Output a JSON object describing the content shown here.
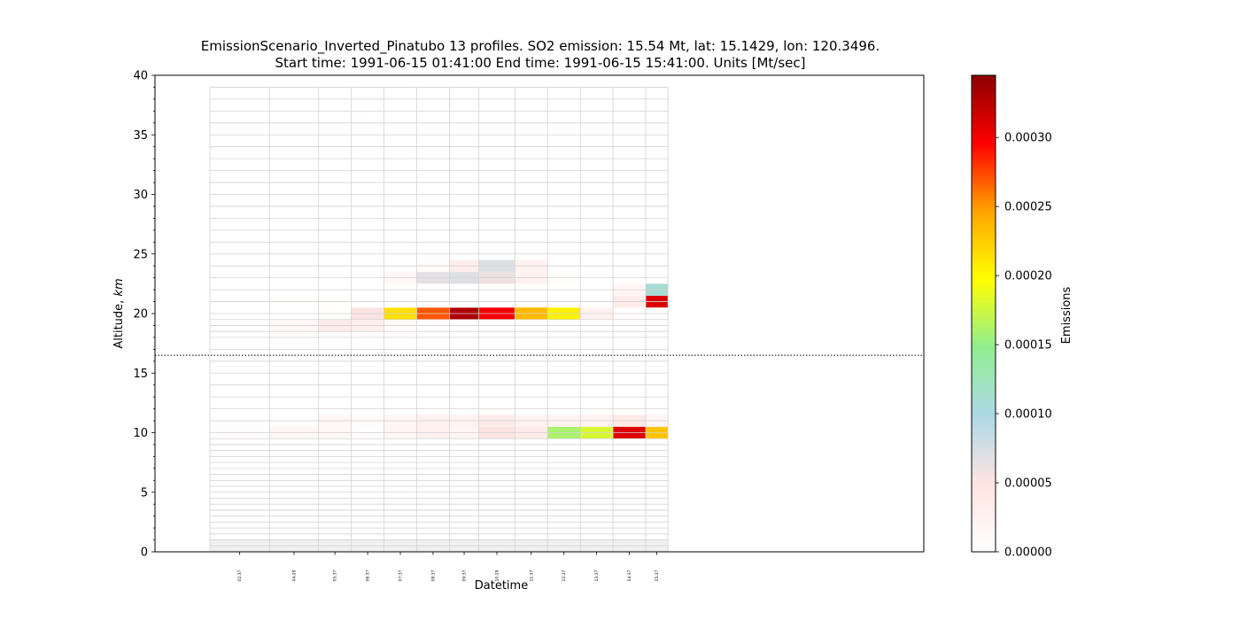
{
  "chart_data": {
    "type": "heatmap",
    "title_line1": "EmissionScenario_Inverted_Pinatubo 13 profiles. SO2  emission: 15.54 Mt, lat: 15.1429, lon: 120.3496.",
    "title_line2": "Start time: 1991-06-15 01:41:00 End time: 1991-06-15 15:41:00. Units [Mt/sec]",
    "xlabel": "Datetime",
    "ylabel_text": "Altitude, ",
    "ylabel_unit": "km",
    "ylim": [
      0,
      40
    ],
    "yticks": [
      0,
      5,
      10,
      15,
      20,
      25,
      30,
      35,
      40
    ],
    "tropopause_altitude_km": 16.5,
    "colorbar": {
      "label": "Emissions",
      "range": [
        0,
        0.000345
      ],
      "ticks": [
        0,
        5e-05,
        0.0001,
        0.00015,
        0.0002,
        0.00025,
        0.0003
      ],
      "tick_labels": [
        "0.00000",
        "0.00005",
        "0.00010",
        "0.00015",
        "0.00020",
        "0.00025",
        "0.00030"
      ],
      "colors": [
        "#ffffff",
        "#ffe4e1",
        "#add8e6",
        "#90ee90",
        "#ffff00",
        "#ffa500",
        "#ff0000",
        "#8b0000"
      ]
    },
    "time_labels": [
      "02:37",
      "04:29",
      "05:37",
      "06:37",
      "07:37",
      "08:37",
      "09:37",
      "10:29",
      "11:37",
      "12:37",
      "13:37",
      "14:37",
      "15:37"
    ],
    "time_edges_hours": [
      1.68,
      3.5,
      5.0,
      6.0,
      7.0,
      8.0,
      9.0,
      9.9,
      11.0,
      12.0,
      13.0,
      14.0,
      15.0,
      15.68
    ],
    "xlim_hours": [
      0.0,
      23.5
    ],
    "altitude_levels_km": [
      0,
      0.5,
      1,
      1.5,
      2,
      2.5,
      3,
      3.5,
      4,
      4.5,
      5,
      5.5,
      6,
      6.5,
      7,
      7.5,
      8,
      8.5,
      9,
      9.5,
      10,
      11,
      12,
      13,
      14,
      15,
      16,
      17,
      18,
      18.5,
      19,
      19.5,
      20,
      21,
      22,
      23,
      24,
      25,
      26,
      27,
      28,
      29,
      30,
      31,
      32,
      33,
      34,
      35,
      36,
      37,
      38,
      39
    ],
    "cells": [
      {
        "t": 0,
        "bottom": 9.5,
        "top": 10.5,
        "v": 3e-06
      },
      {
        "t": 0,
        "bottom": 18.5,
        "top": 19.5,
        "v": 1.5e-06
      },
      {
        "t": 1,
        "bottom": 9.5,
        "top": 10.5,
        "v": 1.4e-05
      },
      {
        "t": 1,
        "bottom": 10.5,
        "top": 11.5,
        "v": 3e-06
      },
      {
        "t": 1,
        "bottom": 18.5,
        "top": 19.5,
        "v": 1.3e-05
      },
      {
        "t": 1,
        "bottom": 17.5,
        "top": 18.5,
        "v": 1e-06
      },
      {
        "t": 1,
        "bottom": 20.5,
        "top": 21.5,
        "v": 2.5e-06
      },
      {
        "t": 2,
        "bottom": 9.5,
        "top": 10.5,
        "v": 1.4e-05
      },
      {
        "t": 2,
        "bottom": 10.5,
        "top": 11.5,
        "v": 1.4e-05
      },
      {
        "t": 2,
        "bottom": 18.5,
        "top": 19.5,
        "v": 3.4e-05
      },
      {
        "t": 2,
        "bottom": 19.5,
        "top": 20.5,
        "v": 2.5e-06
      },
      {
        "t": 2,
        "bottom": 20.5,
        "top": 21.5,
        "v": 2.5e-06
      },
      {
        "t": 3,
        "bottom": 9.5,
        "top": 10.5,
        "v": 4e-06
      },
      {
        "t": 3,
        "bottom": 10.5,
        "top": 11.5,
        "v": 7e-06
      },
      {
        "t": 3,
        "bottom": 18.5,
        "top": 19.5,
        "v": 2.8e-05
      },
      {
        "t": 3,
        "bottom": 19.5,
        "top": 20.5,
        "v": 5.2e-05
      },
      {
        "t": 3,
        "bottom": 20.5,
        "top": 21.5,
        "v": 1.5e-06
      },
      {
        "t": 3,
        "bottom": 35.5,
        "top": 38.5,
        "v": 3.5e-06
      },
      {
        "t": 3,
        "bottom": 34.5,
        "top": 35.5,
        "v": 1e-06
      },
      {
        "t": 4,
        "bottom": 9.5,
        "top": 10.5,
        "v": 1.6e-05
      },
      {
        "t": 4,
        "bottom": 10.5,
        "top": 11.5,
        "v": 1.6e-05
      },
      {
        "t": 4,
        "bottom": 18.5,
        "top": 19.5,
        "v": 6e-06
      },
      {
        "t": 4,
        "bottom": 19.5,
        "top": 20.5,
        "v": 0.000215
      },
      {
        "t": 4,
        "bottom": 20.5,
        "top": 22.5,
        "v": 1.5e-06
      },
      {
        "t": 4,
        "bottom": 22.5,
        "top": 23.5,
        "v": 1.7e-05
      },
      {
        "t": 4,
        "bottom": 34.5,
        "top": 35.5,
        "v": 1e-06
      },
      {
        "t": 5,
        "bottom": 9.5,
        "top": 10.5,
        "v": 2.6e-05
      },
      {
        "t": 5,
        "bottom": 10.5,
        "top": 11.5,
        "v": 2.6e-05
      },
      {
        "t": 5,
        "bottom": 18.5,
        "top": 19.5,
        "v": 3e-06
      },
      {
        "t": 5,
        "bottom": 19.5,
        "top": 20.5,
        "v": 0.00027
      },
      {
        "t": 5,
        "bottom": 20.5,
        "top": 21.5,
        "v": 2e-06
      },
      {
        "t": 5,
        "bottom": 22.5,
        "top": 23.5,
        "v": 6.5e-05
      },
      {
        "t": 5,
        "bottom": 23.5,
        "top": 24.5,
        "v": 4.5e-06
      },
      {
        "t": 6,
        "bottom": 9.5,
        "top": 10.5,
        "v": 1.8e-05
      },
      {
        "t": 6,
        "bottom": 10.5,
        "top": 11.5,
        "v": 2.4e-05
      },
      {
        "t": 6,
        "bottom": 18.5,
        "top": 19.5,
        "v": 3e-06
      },
      {
        "t": 6,
        "bottom": 19.5,
        "top": 20.5,
        "v": 0.00033
      },
      {
        "t": 6,
        "bottom": 20.5,
        "top": 21.5,
        "v": 2e-06
      },
      {
        "t": 6,
        "bottom": 22.5,
        "top": 23.5,
        "v": 7e-05
      },
      {
        "t": 6,
        "bottom": 23.5,
        "top": 24.5,
        "v": 3.2e-05
      },
      {
        "t": 7,
        "bottom": 9.5,
        "top": 10.5,
        "v": 5.2e-05
      },
      {
        "t": 7,
        "bottom": 10.5,
        "top": 11.5,
        "v": 3.6e-05
      },
      {
        "t": 7,
        "bottom": 19.5,
        "top": 20.5,
        "v": 0.0003
      },
      {
        "t": 7,
        "bottom": 22.5,
        "top": 23.5,
        "v": 6e-05
      },
      {
        "t": 7,
        "bottom": 23.5,
        "top": 24.5,
        "v": 7e-05
      },
      {
        "t": 8,
        "bottom": 9.5,
        "top": 10.5,
        "v": 3.6e-05
      },
      {
        "t": 8,
        "bottom": 10.5,
        "top": 11.5,
        "v": 2.2e-05
      },
      {
        "t": 8,
        "bottom": 19.5,
        "top": 20.5,
        "v": 0.000235
      },
      {
        "t": 8,
        "bottom": 23.5,
        "top": 24.5,
        "v": 2.6e-05
      },
      {
        "t": 8,
        "bottom": 22.5,
        "top": 23.5,
        "v": 2.6e-05
      },
      {
        "t": 9,
        "bottom": 9.5,
        "top": 10.5,
        "v": 0.00016
      },
      {
        "t": 9,
        "bottom": 10.5,
        "top": 11.5,
        "v": 2.2e-05
      },
      {
        "t": 9,
        "bottom": 19.5,
        "top": 20.5,
        "v": 0.000205
      },
      {
        "t": 9,
        "bottom": 22.5,
        "top": 23.5,
        "v": 4.5e-06
      },
      {
        "t": 9,
        "bottom": 23.5,
        "top": 24.5,
        "v": 3.5e-06
      },
      {
        "t": 10,
        "bottom": 9.5,
        "top": 10.5,
        "v": 0.00018
      },
      {
        "t": 10,
        "bottom": 10.5,
        "top": 11.5,
        "v": 2.4e-05
      },
      {
        "t": 10,
        "bottom": 19.5,
        "top": 20.5,
        "v": 2.6e-05
      },
      {
        "t": 11,
        "bottom": 9.5,
        "top": 10.5,
        "v": 0.00031
      },
      {
        "t": 11,
        "bottom": 10.5,
        "top": 11.5,
        "v": 4e-05
      },
      {
        "t": 11,
        "bottom": 19.5,
        "top": 20.5,
        "v": 3.5e-06
      },
      {
        "t": 11,
        "bottom": 20.5,
        "top": 21.5,
        "v": 3.4e-05
      },
      {
        "t": 11,
        "bottom": 21.5,
        "top": 22.5,
        "v": 1.8e-05
      },
      {
        "t": 12,
        "bottom": 9.5,
        "top": 10.5,
        "v": 0.00023
      },
      {
        "t": 12,
        "bottom": 10.5,
        "top": 11.5,
        "v": 1.8e-05
      },
      {
        "t": 12,
        "bottom": 20.5,
        "top": 21.5,
        "v": 0.00031
      },
      {
        "t": 12,
        "bottom": 21.5,
        "top": 22.5,
        "v": 0.00011
      },
      {
        "t": 12,
        "bottom": 19.5,
        "top": 20.5,
        "v": 1.5e-06
      }
    ]
  }
}
